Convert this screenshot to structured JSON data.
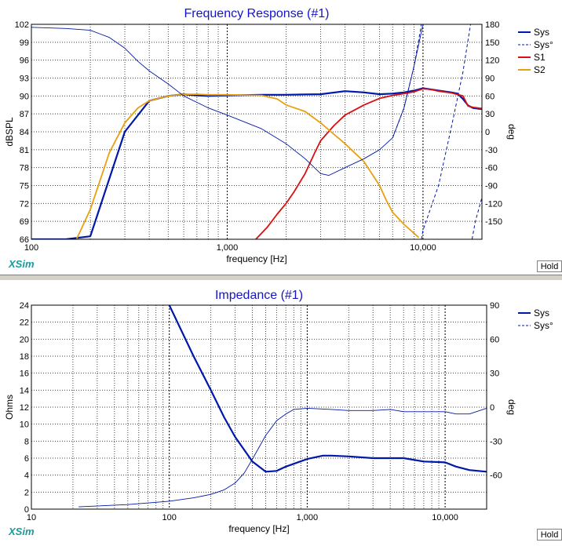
{
  "app": {
    "brand": "XSim",
    "hold_label": "Hold"
  },
  "chart_data": [
    {
      "type": "line",
      "title": "Frequency Response (#1)",
      "xlabel": "frequency [Hz]",
      "ylabel": "dBSPL",
      "y2label": "deg",
      "xscale": "log",
      "xlim": [
        100,
        20000
      ],
      "ylim": [
        66,
        102
      ],
      "y2lim": [
        -180,
        180
      ],
      "xticks": [
        100,
        1000,
        10000
      ],
      "xtick_labels": [
        "100",
        "1,000",
        "10,000"
      ],
      "yticks": [
        66,
        69,
        72,
        75,
        78,
        81,
        84,
        87,
        90,
        93,
        96,
        99,
        102
      ],
      "ytick_labels": [
        "66",
        "69",
        "72",
        "75",
        "78",
        "81",
        "84",
        "87",
        "90",
        "93",
        "96",
        "99",
        "102"
      ],
      "y2ticks": [
        -150,
        -120,
        -90,
        -60,
        -30,
        0,
        30,
        60,
        90,
        120,
        150,
        180
      ],
      "y2tick_labels": [
        "-150",
        "-120",
        "-90",
        "-60",
        "-30",
        "0",
        "30",
        "60",
        "90",
        "120",
        "150",
        "180"
      ],
      "grid": true,
      "legend_position": "top-right",
      "series": [
        {
          "name": "Sys",
          "axis": "left",
          "color": "#0018a8",
          "style": "solid",
          "width": 2.2,
          "x": [
            100,
            150,
            200,
            300,
            400,
            500,
            600,
            700,
            800,
            1000,
            1500,
            2000,
            3000,
            4000,
            5000,
            6000,
            7000,
            8000,
            9000,
            10000,
            11000,
            12000,
            14000,
            15000,
            16000,
            17000,
            18000,
            20000
          ],
          "y": [
            66,
            66,
            66.5,
            84,
            89.2,
            90,
            90.3,
            90.1,
            90,
            90.1,
            90.2,
            90.2,
            90.3,
            90.8,
            90.6,
            90.3,
            90.4,
            90.6,
            90.9,
            91.3,
            91.1,
            90.9,
            90.6,
            90.4,
            89.5,
            88.4,
            88.0,
            87.8
          ]
        },
        {
          "name": "Sys°",
          "axis": "right",
          "color": "#0018a8",
          "style": "dashed",
          "width": 1,
          "x": [
            7000,
            8000,
            9000,
            9700,
            9800,
            9830,
            10000,
            12000,
            14000,
            16000,
            17500,
            17800,
            18500,
            20000
          ],
          "y": [
            -10,
            40,
            110,
            170,
            180,
            -180,
            -165,
            -90,
            10,
            100,
            180,
            -180,
            -150,
            -110
          ]
        },
        {
          "name": "S1",
          "axis": "left",
          "color": "#d81010",
          "style": "solid",
          "width": 1.8,
          "x": [
            1400,
            1600,
            1800,
            2000,
            2200,
            2500,
            2800,
            3000,
            3500,
            4000,
            5000,
            6000,
            7000,
            8000,
            9000,
            10000,
            11000,
            12000,
            14000,
            16000,
            17000,
            18000,
            20000
          ],
          "y": [
            66,
            68,
            70.2,
            72,
            74,
            77,
            80.5,
            82.5,
            85,
            86.8,
            88.5,
            89.6,
            90.1,
            90.4,
            90.7,
            91.2,
            91.1,
            90.8,
            90.5,
            90.0,
            88.3,
            88.1,
            87.9
          ]
        },
        {
          "name": "S2",
          "axis": "left",
          "color": "#e8a010",
          "style": "solid",
          "width": 1.8,
          "x": [
            170,
            200,
            250,
            300,
            350,
            400,
            500,
            600,
            700,
            800,
            1000,
            1500,
            1800,
            2000,
            2500,
            3000,
            3500,
            4000,
            5000,
            6000,
            6500,
            7000,
            8000,
            9000,
            9500
          ],
          "y": [
            66,
            71,
            80.5,
            85.5,
            88,
            89.2,
            90,
            90.3,
            90.3,
            90.2,
            90.2,
            90.1,
            89.5,
            88.5,
            87.4,
            85.5,
            83.6,
            82,
            79,
            75,
            72.5,
            70.5,
            68.5,
            67,
            66.3
          ]
        },
        {
          "name": "",
          "axis": "right",
          "color": "#0018a8",
          "style": "solid",
          "width": 0.9,
          "x": [
            100,
            150,
            200,
            250,
            300,
            350,
            400,
            500,
            600,
            800,
            1000,
            1500,
            2000,
            2500,
            3000,
            3300,
            4000,
            5000,
            6000,
            7000,
            8000,
            9000,
            10000
          ],
          "y": [
            175,
            173,
            170,
            158,
            140,
            118,
            102,
            80,
            60,
            40,
            28,
            5,
            -20,
            -45,
            -70,
            -73,
            -60,
            -45,
            -30,
            -10,
            40,
            110,
            180
          ]
        }
      ]
    },
    {
      "type": "line",
      "title": "Impedance (#1)",
      "xlabel": "frequency [Hz]",
      "ylabel": "Ohms",
      "y2label": "deg",
      "xscale": "log",
      "xlim": [
        10,
        20000
      ],
      "ylim": [
        0,
        24
      ],
      "y2lim": [
        -90,
        90
      ],
      "xticks": [
        10,
        100,
        1000,
        10000
      ],
      "xtick_labels": [
        "10",
        "100",
        "1,000",
        "10,000"
      ],
      "yticks": [
        0,
        2,
        4,
        6,
        8,
        10,
        12,
        14,
        16,
        18,
        20,
        22,
        24
      ],
      "ytick_labels": [
        "0",
        "2",
        "4",
        "6",
        "8",
        "10",
        "12",
        "14",
        "16",
        "18",
        "20",
        "22",
        "24"
      ],
      "y2ticks": [
        -60,
        -30,
        0,
        30,
        60,
        90
      ],
      "y2tick_labels": [
        "-60",
        "-30",
        "0",
        "30",
        "60",
        "90"
      ],
      "grid": true,
      "legend_position": "top-right",
      "series": [
        {
          "name": "Sys",
          "axis": "left",
          "color": "#0018a8",
          "style": "solid",
          "width": 2.2,
          "x": [
            100,
            150,
            200,
            250,
            300,
            400,
            500,
            600,
            700,
            1000,
            1300,
            1500,
            2000,
            3000,
            4000,
            5000,
            7000,
            10000,
            12000,
            15000,
            20000
          ],
          "y": [
            24,
            18,
            14,
            10.8,
            8.5,
            5.6,
            4.4,
            4.5,
            5.0,
            5.9,
            6.3,
            6.3,
            6.2,
            6.0,
            6.0,
            6.0,
            5.6,
            5.5,
            5.0,
            4.6,
            4.4
          ]
        },
        {
          "name": "Sys°",
          "axis": "right",
          "color": "#0018a8",
          "style": "dashed",
          "width": 1,
          "x": [],
          "y": []
        },
        {
          "name": "",
          "axis": "right",
          "color": "#0018a8",
          "style": "solid",
          "width": 0.9,
          "x": [
            22,
            50,
            100,
            150,
            200,
            250,
            300,
            350,
            400,
            500,
            600,
            700,
            800,
            1000,
            1500,
            2000,
            3000,
            4000,
            5000,
            7000,
            10000,
            12000,
            15000,
            20000
          ],
          "y": [
            -88,
            -86,
            -83,
            -80,
            -77,
            -73,
            -67,
            -58,
            -46,
            -25,
            -12,
            -6,
            -2,
            -1,
            -2,
            -3,
            -3,
            -2,
            -4,
            -4,
            -4,
            -6,
            -6,
            -1
          ]
        }
      ]
    }
  ]
}
